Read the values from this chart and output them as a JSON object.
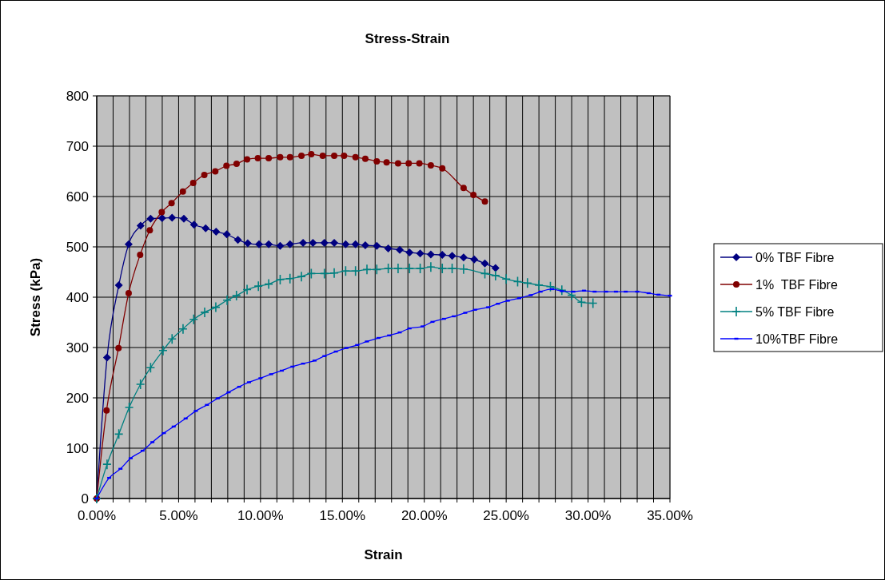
{
  "chart_data": {
    "type": "line",
    "title": "Stress-Strain",
    "xlabel": "Strain",
    "ylabel": "Stress (kPa)",
    "xlim": [
      0,
      0.35
    ],
    "xticks": [
      {
        "value": 0,
        "label": "0.00%"
      },
      {
        "value": 0.01,
        "label": null
      },
      {
        "value": 0.02,
        "label": null
      },
      {
        "value": 0.03,
        "label": null
      },
      {
        "value": 0.04,
        "label": null
      },
      {
        "value": 0.05,
        "label": "5.00%"
      },
      {
        "value": 0.06,
        "label": null
      },
      {
        "value": 0.07,
        "label": null
      },
      {
        "value": 0.08,
        "label": null
      },
      {
        "value": 0.09,
        "label": null
      },
      {
        "value": 0.1,
        "label": "10.00%"
      },
      {
        "value": 0.11,
        "label": null
      },
      {
        "value": 0.12,
        "label": null
      },
      {
        "value": 0.13,
        "label": null
      },
      {
        "value": 0.14,
        "label": null
      },
      {
        "value": 0.15,
        "label": "15.00%"
      },
      {
        "value": 0.16,
        "label": null
      },
      {
        "value": 0.17,
        "label": null
      },
      {
        "value": 0.18,
        "label": null
      },
      {
        "value": 0.19,
        "label": null
      },
      {
        "value": 0.2,
        "label": "20.00%"
      },
      {
        "value": 0.21,
        "label": null
      },
      {
        "value": 0.22,
        "label": null
      },
      {
        "value": 0.23,
        "label": null
      },
      {
        "value": 0.24,
        "label": null
      },
      {
        "value": 0.25,
        "label": "25.00%"
      },
      {
        "value": 0.26,
        "label": null
      },
      {
        "value": 0.27,
        "label": null
      },
      {
        "value": 0.28,
        "label": null
      },
      {
        "value": 0.29,
        "label": null
      },
      {
        "value": 0.3,
        "label": "30.00%"
      },
      {
        "value": 0.31,
        "label": null
      },
      {
        "value": 0.32,
        "label": null
      },
      {
        "value": 0.33,
        "label": null
      },
      {
        "value": 0.34,
        "label": null
      },
      {
        "value": 0.35,
        "label": "35.00%"
      }
    ],
    "ylim": [
      0,
      800
    ],
    "yticks": [
      0,
      100,
      200,
      300,
      400,
      500,
      600,
      700,
      800
    ],
    "grid": true,
    "legend": "right",
    "line_style": "solid",
    "series": [
      {
        "name": "0% TBF Fibre",
        "color": "#000080",
        "marker": "diamond",
        "x": [
          0,
          0.0063,
          0.0135,
          0.0195,
          0.0268,
          0.0329,
          0.0399,
          0.046,
          0.0532,
          0.0594,
          0.0665,
          0.0729,
          0.0794,
          0.0862,
          0.0922,
          0.0991,
          0.105,
          0.112,
          0.118,
          0.126,
          0.132,
          0.139,
          0.145,
          0.152,
          0.158,
          0.164,
          0.171,
          0.178,
          0.185,
          0.191,
          0.1975,
          0.204,
          0.211,
          0.217,
          0.224,
          0.2305,
          0.237,
          0.2435
        ],
        "values": [
          0,
          280,
          424,
          505,
          542,
          556,
          557,
          558,
          556,
          544,
          537,
          530,
          525,
          514,
          507,
          505,
          505,
          502,
          505,
          508,
          508,
          508,
          508,
          505,
          505,
          503,
          502,
          497,
          494,
          489,
          487,
          485,
          484,
          482,
          479,
          475,
          467,
          458
        ]
      },
      {
        "name": "1%  TBF Fibre",
        "color": "#800000",
        "marker": "circle",
        "x": [
          0,
          0.006,
          0.0133,
          0.0195,
          0.0265,
          0.0324,
          0.0397,
          0.0457,
          0.0526,
          0.0589,
          0.0657,
          0.0724,
          0.0792,
          0.0854,
          0.0918,
          0.0984,
          0.105,
          0.112,
          0.118,
          0.125,
          0.131,
          0.138,
          0.145,
          0.151,
          0.158,
          0.164,
          0.171,
          0.177,
          0.184,
          0.1905,
          0.197,
          0.204,
          0.211,
          0.224,
          0.23,
          0.237
        ],
        "values": [
          0,
          175,
          299,
          408,
          484,
          533,
          569,
          587,
          610,
          627,
          643,
          650,
          661,
          665,
          674,
          676,
          676,
          678,
          678,
          681,
          684,
          681,
          681,
          681,
          678,
          675,
          670,
          668,
          666,
          666,
          666,
          662,
          656,
          617,
          603,
          590
        ]
      },
      {
        "name": "5% TBF Fibre",
        "color": "#008080",
        "marker": "cross",
        "x": [
          0,
          0.0063,
          0.0135,
          0.0198,
          0.0267,
          0.0329,
          0.0405,
          0.046,
          0.0527,
          0.0592,
          0.0659,
          0.0727,
          0.0796,
          0.0853,
          0.0918,
          0.0987,
          0.105,
          0.112,
          0.118,
          0.125,
          0.131,
          0.139,
          0.145,
          0.152,
          0.158,
          0.165,
          0.171,
          0.178,
          0.184,
          0.191,
          0.1975,
          0.204,
          0.211,
          0.217,
          0.224,
          0.237,
          0.2435,
          0.25,
          0.257,
          0.263,
          0.27,
          0.277,
          0.284,
          0.29,
          0.296,
          0.303
        ],
        "values": [
          0,
          68,
          128,
          181,
          227,
          260,
          294,
          317,
          337,
          356,
          370,
          380,
          394,
          403,
          415,
          422,
          426,
          435,
          437,
          441,
          447,
          447,
          448,
          452,
          452,
          455,
          455,
          457,
          457,
          457,
          457,
          460,
          457,
          457,
          456,
          447,
          443,
          436,
          431,
          428,
          424,
          421,
          414,
          404,
          390,
          388
        ]
      },
      {
        "name": "10%TBF Fibre",
        "color": "#0000ff",
        "marker": "square",
        "x": [
          0,
          0.0076,
          0.0145,
          0.0207,
          0.028,
          0.034,
          0.041,
          0.047,
          0.0543,
          0.0605,
          0.0673,
          0.0739,
          0.0805,
          0.087,
          0.093,
          0.1,
          0.1065,
          0.113,
          0.1195,
          0.126,
          0.133,
          0.139,
          0.146,
          0.1525,
          0.159,
          0.165,
          0.172,
          0.1785,
          0.185,
          0.191,
          0.199,
          0.205,
          0.212,
          0.218,
          0.225,
          0.231,
          0.239,
          0.245,
          0.251,
          0.258,
          0.265,
          0.271,
          0.278,
          0.284,
          0.291,
          0.2975,
          0.304,
          0.311,
          0.317,
          0.323,
          0.33,
          0.337,
          0.343,
          0.35
        ],
        "values": [
          0,
          41,
          59,
          80,
          95,
          112,
          130,
          143,
          159,
          174,
          186,
          199,
          211,
          222,
          231,
          239,
          247,
          254,
          262,
          268,
          274,
          283,
          292,
          299,
          305,
          312,
          319,
          324,
          330,
          338,
          342,
          351,
          357,
          362,
          369,
          375,
          380,
          387,
          393,
          398,
          404,
          411,
          416,
          412,
          411,
          413,
          411,
          411,
          411,
          411,
          411,
          408,
          405,
          403
        ]
      }
    ]
  }
}
